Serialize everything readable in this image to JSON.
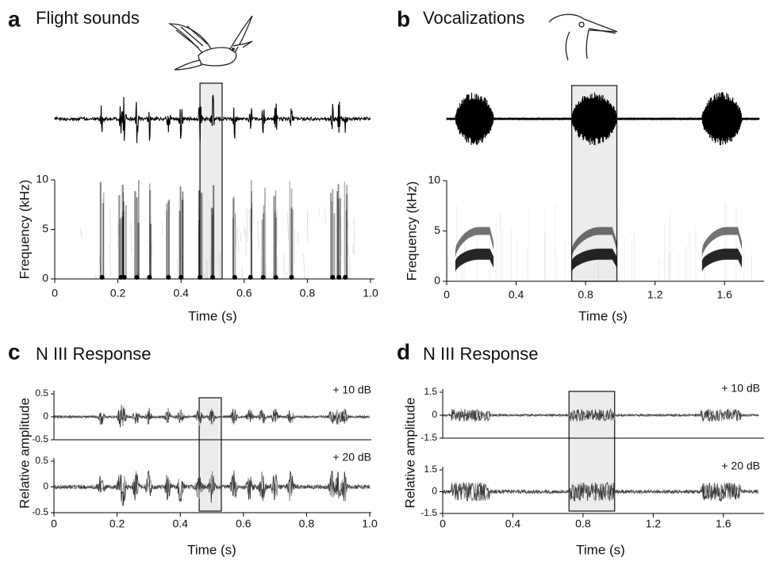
{
  "chart_data": [
    {
      "type": "spectrogram",
      "letter": "a",
      "title": "Flight sounds",
      "xlabel": "Time (s)",
      "ylabel": "Frequency (kHz)",
      "xlim": [
        0,
        1
      ],
      "xticks": [
        0,
        0.2,
        0.4,
        0.6,
        0.8,
        {
          "value": 1,
          "label": "1.0"
        }
      ],
      "ylim": [
        0,
        10
      ],
      "yticks": [
        0,
        5,
        10
      ],
      "highlight": [
        0.46,
        0.53
      ],
      "events": [
        0.15,
        0.21,
        0.22,
        0.26,
        0.3,
        0.36,
        0.4,
        0.46,
        0.5,
        0.57,
        0.62,
        0.66,
        0.7,
        0.75,
        0.88,
        0.9,
        0.92
      ]
    },
    {
      "type": "spectrogram",
      "letter": "b",
      "title": "Vocalizations",
      "xlabel": "Time (s)",
      "ylabel": "Frequency (kHz)",
      "xlim": [
        0,
        1.8
      ],
      "xticks": [
        0,
        0.4,
        0.8,
        1.2,
        1.6
      ],
      "ylim": [
        0,
        10
      ],
      "yticks": [
        0,
        5,
        10
      ],
      "highlight": [
        0.72,
        0.98
      ],
      "syllables": [
        [
          0.05,
          0.27
        ],
        [
          0.72,
          0.98
        ],
        [
          1.47,
          1.7
        ]
      ],
      "harmonics": [
        2.7,
        5
      ]
    },
    {
      "type": "response",
      "letter": "c",
      "title": "N III Response",
      "xlabel": "Time (s)",
      "ylabel": "Relative amplitude",
      "xlim": [
        0,
        1
      ],
      "xticks": [
        0,
        0.2,
        0.4,
        0.6,
        0.8,
        {
          "value": 1,
          "label": "1.0"
        }
      ],
      "highlight": [
        0.46,
        0.53
      ],
      "traces": [
        {
          "label": "+ 10 dB",
          "ylim": [
            -0.5,
            0.5
          ],
          "yticks": [
            -0.5,
            0,
            0.5
          ]
        },
        {
          "label": "+ 20 dB",
          "ylim": [
            -0.5,
            0.5
          ],
          "yticks": [
            -0.5,
            0,
            0.5
          ]
        }
      ]
    },
    {
      "type": "response",
      "letter": "d",
      "title": "N III Response",
      "xlabel": "Time (s)",
      "ylabel": "Relative amplitude",
      "xlim": [
        0,
        1.8
      ],
      "xticks": [
        0,
        0.4,
        0.8,
        1.2,
        1.6
      ],
      "highlight": [
        0.72,
        0.98
      ],
      "traces": [
        {
          "label": "+ 10 dB",
          "ylim": [
            -1.5,
            1.5
          ],
          "yticks": [
            -1.5,
            0,
            1.5
          ]
        },
        {
          "label": "+ 20 dB",
          "ylim": [
            -1.5,
            1.5
          ],
          "yticks": [
            -1.5,
            0,
            1.5
          ]
        }
      ]
    }
  ]
}
